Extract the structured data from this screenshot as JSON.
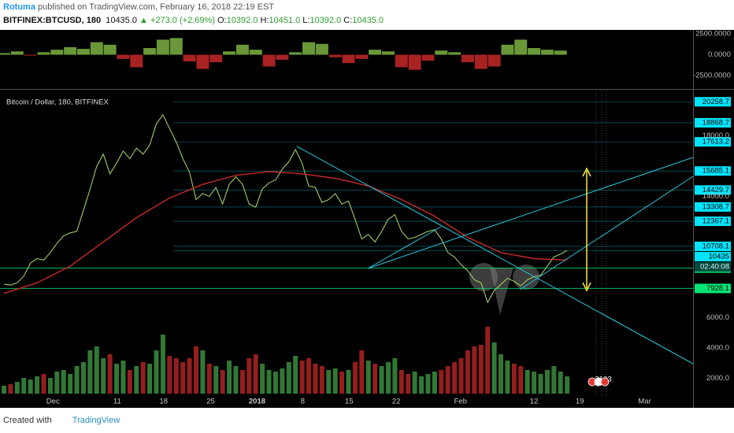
{
  "header": {
    "author": "Rotuma",
    "published": "published on TradingView.com, February 16, 2018 22:19 EST",
    "symbol": "BITFINEX:BTCUSD, 180",
    "last": "10435.0",
    "change": "▲ +273.0 (+2.69%)",
    "ohlc": [
      {
        "key": "O:",
        "value": "10392.0"
      },
      {
        "key": "H:",
        "value": "10451.0"
      },
      {
        "key": "L:",
        "value": "10392.0"
      },
      {
        "key": "C:",
        "value": "10435.0"
      }
    ]
  },
  "footer": {
    "prefix": "Created with",
    "brand": "TradingView"
  },
  "chart_data": [
    {
      "type": "bar",
      "color": "#7cb342",
      "negative_color": "#c62828",
      "x": [
        0,
        2,
        4,
        6,
        8,
        10,
        12,
        14,
        16,
        18,
        20,
        22,
        24,
        26,
        28,
        30,
        32,
        34,
        36,
        38,
        40,
        42,
        44,
        46,
        48,
        50,
        52,
        54,
        56,
        58,
        60,
        62,
        64,
        66,
        68,
        70,
        72,
        74,
        76,
        78,
        80,
        82,
        84
      ],
      "values": [
        200,
        400,
        -100,
        300,
        600,
        900,
        700,
        1500,
        1200,
        -500,
        -1500,
        800,
        1800,
        2000,
        -800,
        -1700,
        -900,
        400,
        1200,
        600,
        -1400,
        -600,
        300,
        1500,
        1300,
        -300,
        -1000,
        -500,
        600,
        400,
        -1500,
        -1800,
        -700,
        500,
        300,
        -900,
        -1700,
        -1400,
        1200,
        1800,
        800,
        600,
        500
      ],
      "xlim": [
        0,
        104
      ],
      "ylim": [
        -4000,
        2970
      ],
      "yticks": [
        {
          "value": 2500,
          "label": "2500.0000"
        },
        {
          "value": 0,
          "label": "0.0000"
        },
        {
          "value": -2500,
          "label": "-2500.0000"
        }
      ]
    },
    {
      "type": "line",
      "title": "Bitcoin / Dollar, 180, BITFINEX",
      "countdown": "02:40:08",
      "events": [
        "3",
        "10",
        "3"
      ],
      "series": [
        {
          "color": "#9ccc65",
          "values": [
            8200,
            8150,
            8300,
            8750,
            9600,
            9900,
            9800,
            10300,
            10900,
            11400,
            11600,
            11700,
            13100,
            14500,
            16000,
            16800,
            15500,
            16200,
            17000,
            16500,
            17200,
            16800,
            17400,
            18800,
            19400,
            18500,
            17600,
            16500,
            15600,
            13800,
            14200,
            14000,
            14600,
            13500,
            14800,
            15300,
            14800,
            13500,
            13300,
            14500,
            14900,
            15100,
            15800,
            16300,
            17100,
            16200,
            14700,
            14600,
            13600,
            13800,
            14200,
            13500,
            13700,
            12500,
            11200,
            11500,
            11000,
            11700,
            12500,
            12800,
            11700,
            11200,
            11300,
            11500,
            11700,
            11800,
            11200,
            10300,
            10000,
            9500,
            9100,
            8500,
            8300,
            7000,
            7800,
            8200,
            8600,
            8400,
            8100,
            8500,
            8700,
            8800,
            9400,
            10000,
            10200,
            10435
          ]
        },
        {
          "color": "#c62828",
          "x": [
            0,
            5,
            10,
            15,
            20,
            25,
            30,
            35,
            40,
            45,
            50,
            55,
            60,
            65,
            70,
            75,
            80,
            85
          ],
          "values": [
            7600,
            8300,
            9400,
            11000,
            12600,
            13900,
            14800,
            15400,
            15650,
            15500,
            15200,
            14700,
            13800,
            12700,
            11300,
            10300,
            9900,
            9800
          ]
        }
      ],
      "levels": [
        {
          "value": 20258.7,
          "color": "#00e5ff"
        },
        {
          "value": 18868.7,
          "color": "#00e5ff"
        },
        {
          "value": 17613.2,
          "color": "#00e5ff"
        },
        {
          "value": 15685.1,
          "color": "#00e5ff"
        },
        {
          "value": 14429.7,
          "color": "#00e5ff"
        },
        {
          "value": 13308.7,
          "color": "#00e5ff"
        },
        {
          "value": 12367.1,
          "color": "#00e5ff"
        },
        {
          "value": 10708.1,
          "color": "#00e5ff"
        },
        {
          "value": 10435.0,
          "color": "#00e5ff"
        },
        {
          "value": 9273.2,
          "color": "#00e676"
        },
        {
          "value": 7928.1,
          "color": "#00e676"
        }
      ],
      "xlim": [
        0,
        104
      ],
      "ylim": [
        200,
        21000
      ],
      "yticks": [
        {
          "value": 18000,
          "label": "18000.0"
        },
        {
          "value": 14000,
          "label": "14000.0"
        },
        {
          "value": 6000,
          "label": "6000.0"
        },
        {
          "value": 4000,
          "label": "4000.0"
        },
        {
          "value": 2000,
          "label": "2000.0"
        }
      ],
      "xticks": [
        {
          "value": 7.4,
          "label": "Dec"
        },
        {
          "value": 17.1,
          "label": "11"
        },
        {
          "value": 24.1,
          "label": "18"
        },
        {
          "value": 31.2,
          "label": "25"
        },
        {
          "value": 38.2,
          "label": "2018"
        },
        {
          "value": 45.1,
          "label": "8"
        },
        {
          "value": 52.1,
          "label": "15"
        },
        {
          "value": 59.2,
          "label": "22"
        },
        {
          "value": 68.9,
          "label": "Feb"
        },
        {
          "value": 80.0,
          "label": "12"
        },
        {
          "value": 86.9,
          "label": "19"
        },
        {
          "value": 96.7,
          "label": "Mar"
        }
      ]
    },
    {
      "type": "volume",
      "color": "#43a047",
      "down_color": "#c62828",
      "ylim": [
        0,
        100
      ],
      "values": [
        10,
        12,
        15,
        20,
        18,
        22,
        25,
        20,
        28,
        30,
        25,
        35,
        40,
        55,
        60,
        45,
        50,
        38,
        42,
        30,
        35,
        40,
        38,
        55,
        75,
        48,
        45,
        40,
        45,
        60,
        55,
        38,
        35,
        30,
        42,
        35,
        30,
        45,
        50,
        38,
        30,
        28,
        32,
        40,
        48,
        42,
        45,
        38,
        35,
        30,
        32,
        28,
        30,
        40,
        55,
        42,
        38,
        35,
        40,
        45,
        30,
        25,
        28,
        22,
        25,
        28,
        30,
        35,
        40,
        45,
        55,
        60,
        62,
        85,
        65,
        50,
        42,
        38,
        35,
        30,
        28,
        25,
        30,
        35,
        28,
        22
      ]
    }
  ]
}
